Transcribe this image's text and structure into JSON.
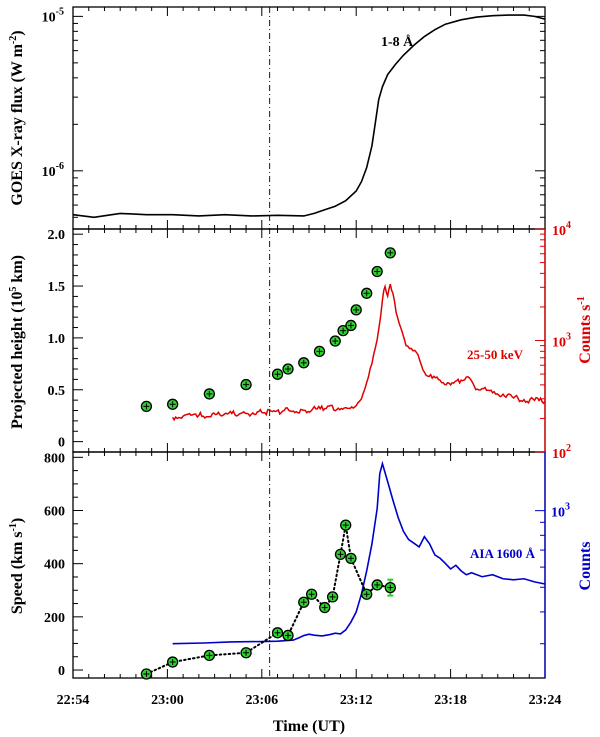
{
  "chart_data": [
    {
      "type": "line",
      "panel": "top",
      "ylabel": "GOES X-ray flux (W m",
      "ylabel_sup": "-2",
      "ylabel_close": ")",
      "yscale": "log",
      "ylim": [
        4.2e-07,
        1.15e-05
      ],
      "xlim": [
        0,
        90
      ],
      "yticks": [
        {
          "base": "10",
          "exp": "-6",
          "value": 1e-06
        },
        {
          "base": "10",
          "exp": "-5",
          "value": 1e-05
        }
      ],
      "series": [
        {
          "name": "1-8 Å",
          "color": "#000000",
          "points": [
            [
              0,
              5.2e-07
            ],
            [
              4,
              5e-07
            ],
            [
              9,
              5.3e-07
            ],
            [
              14,
              5.2e-07
            ],
            [
              19,
              5.2e-07
            ],
            [
              24,
              5.1e-07
            ],
            [
              29,
              5.2e-07
            ],
            [
              34,
              5.1e-07
            ],
            [
              39,
              5.15e-07
            ],
            [
              44,
              5.1e-07
            ],
            [
              46,
              5.3e-07
            ],
            [
              48,
              5.6e-07
            ],
            [
              50,
              5.9e-07
            ],
            [
              52,
              6.4e-07
            ],
            [
              54,
              7.4e-07
            ],
            [
              55,
              8.5e-07
            ],
            [
              56,
              1.05e-06
            ],
            [
              57,
              1.45e-06
            ],
            [
              57.7,
              2.1e-06
            ],
            [
              58.3,
              2.9e-06
            ],
            [
              59,
              3.5e-06
            ],
            [
              60,
              4.2e-06
            ],
            [
              61.5,
              4.9e-06
            ],
            [
              63,
              5.6e-06
            ],
            [
              65,
              6.5e-06
            ],
            [
              67,
              7.4e-06
            ],
            [
              69,
              8.2e-06
            ],
            [
              71,
              8.9e-06
            ],
            [
              74,
              9.5e-06
            ],
            [
              77,
              9.9e-06
            ],
            [
              80,
              1.01e-05
            ],
            [
              83,
              1.02e-05
            ],
            [
              86,
              1.02e-05
            ],
            [
              88,
              1e-05
            ],
            [
              90,
              9.6e-06
            ]
          ]
        }
      ]
    },
    {
      "type": "scatter+line",
      "panel": "middle",
      "ylabel": "Projected height (10",
      "ylabel_sup": "5",
      "ylabel_close": " km)",
      "ylim": [
        -0.1,
        2.05
      ],
      "yticks": [
        "0",
        "0.5",
        "1.0",
        "1.5",
        "2.0"
      ],
      "ytick_values": [
        0,
        0.5,
        1.0,
        1.5,
        2.0
      ],
      "y2label": "Counts s",
      "y2label_sup": "-1",
      "y2scale": "log",
      "y2lim": [
        100,
        10000
      ],
      "y2ticks": [
        {
          "base": "10",
          "exp": "2",
          "value": 100
        },
        {
          "base": "10",
          "exp": "3",
          "value": 1000
        },
        {
          "base": "10",
          "exp": "4",
          "value": 10000
        }
      ],
      "xlim": [
        0,
        90
      ],
      "points_series": {
        "name": "Projected height",
        "x": [
          14,
          19,
          26,
          33,
          39,
          41,
          44,
          47,
          50,
          51.5,
          53,
          54,
          56,
          58,
          60.5
        ],
        "y": [
          0.34,
          0.36,
          0.46,
          0.55,
          0.65,
          0.7,
          0.76,
          0.87,
          0.97,
          1.07,
          1.12,
          1.27,
          1.43,
          1.64,
          1.82
        ]
      },
      "line_series": {
        "name": "25-50 keV",
        "color": "#e00000",
        "points": [
          [
            19,
            205
          ],
          [
            21,
            210
          ],
          [
            24,
            213
          ],
          [
            28,
            216
          ],
          [
            32,
            222
          ],
          [
            36,
            226
          ],
          [
            40,
            233
          ],
          [
            44,
            237
          ],
          [
            48,
            245
          ],
          [
            52,
            250
          ],
          [
            54,
            260
          ],
          [
            55,
            300
          ],
          [
            56,
            420
          ],
          [
            57,
            620
          ],
          [
            58,
            1020
          ],
          [
            59,
            2300
          ],
          [
            59.5,
            3050
          ],
          [
            60,
            2500
          ],
          [
            60.5,
            3200
          ],
          [
            61,
            2650
          ],
          [
            61.6,
            1800
          ],
          [
            62.5,
            1300
          ],
          [
            63.5,
            900
          ],
          [
            64.5,
            850
          ],
          [
            65.5,
            780
          ],
          [
            67,
            520
          ],
          [
            68.5,
            460
          ],
          [
            70,
            440
          ],
          [
            72,
            400
          ],
          [
            74,
            440
          ],
          [
            75,
            470
          ],
          [
            76.5,
            390
          ],
          [
            78,
            370
          ],
          [
            80,
            340
          ],
          [
            82,
            330
          ],
          [
            84,
            305
          ],
          [
            86,
            295
          ],
          [
            88,
            290
          ],
          [
            90,
            285
          ]
        ]
      },
      "annotation": "25-50 keV"
    },
    {
      "type": "scatter+line",
      "panel": "bottom",
      "ylabel": "Speed (km s",
      "ylabel_sup": "-1",
      "ylabel_close": ")",
      "ylim": [
        -30,
        820
      ],
      "yticks": [
        "0",
        "200",
        "400",
        "600",
        "800"
      ],
      "ytick_values": [
        0,
        200,
        400,
        600,
        800
      ],
      "y2label": "Counts",
      "y2scale": "log",
      "y2lim": [
        220,
        1700
      ],
      "y2ticks": [
        {
          "base": "10",
          "exp": "3",
          "value": 1000
        }
      ],
      "xlim": [
        0,
        90
      ],
      "xlabel": "Time (UT)",
      "xticks": [
        "22:54",
        "23:00",
        "23:06",
        "23:12",
        "23:18",
        "23:24"
      ],
      "xtick_values": [
        0,
        18,
        36,
        54,
        72,
        90
      ],
      "points_series": {
        "name": "Speed",
        "x": [
          14,
          19,
          26,
          33,
          39,
          41,
          44,
          45.5,
          48,
          49.5,
          51,
          52,
          53,
          56,
          58,
          60.5
        ],
        "y": [
          -15,
          30,
          55,
          65,
          140,
          130,
          255,
          285,
          235,
          275,
          435,
          545,
          420,
          285,
          320,
          310
        ],
        "error_index": 15,
        "error_value": 30
      },
      "line_series": {
        "name": "AIA 1600 Å",
        "color": "#0000cc",
        "points": [
          [
            19,
            300
          ],
          [
            25,
            302
          ],
          [
            30,
            305
          ],
          [
            36,
            306
          ],
          [
            39,
            307
          ],
          [
            42,
            310
          ],
          [
            43,
            316
          ],
          [
            44,
            323
          ],
          [
            45,
            327
          ],
          [
            46,
            324
          ],
          [
            47.5,
            322
          ],
          [
            49,
            326
          ],
          [
            50,
            330
          ],
          [
            51,
            328
          ],
          [
            52,
            340
          ],
          [
            53,
            365
          ],
          [
            54,
            400
          ],
          [
            55,
            470
          ],
          [
            56,
            580
          ],
          [
            57,
            740
          ],
          [
            58,
            1020
          ],
          [
            58.5,
            1400
          ],
          [
            59,
            1530
          ],
          [
            60,
            1300
          ],
          [
            61,
            1100
          ],
          [
            62,
            940
          ],
          [
            63,
            830
          ],
          [
            64,
            770
          ],
          [
            65,
            745
          ],
          [
            66,
            720
          ],
          [
            67,
            790
          ],
          [
            68,
            740
          ],
          [
            69,
            670
          ],
          [
            70,
            650
          ],
          [
            71,
            620
          ],
          [
            72,
            590
          ],
          [
            73,
            610
          ],
          [
            74,
            580
          ],
          [
            75,
            560
          ],
          [
            76,
            570
          ],
          [
            78,
            550
          ],
          [
            80,
            560
          ],
          [
            82,
            540
          ],
          [
            84,
            535
          ],
          [
            86,
            540
          ],
          [
            88,
            525
          ],
          [
            90,
            515
          ]
        ]
      },
      "annotation": "AIA 1600 Å"
    }
  ],
  "reference_line_time": 37.5,
  "colors": {
    "accent_red": "#e00000",
    "accent_blue": "#0000cc",
    "marker_fill": "#2ed12e"
  }
}
